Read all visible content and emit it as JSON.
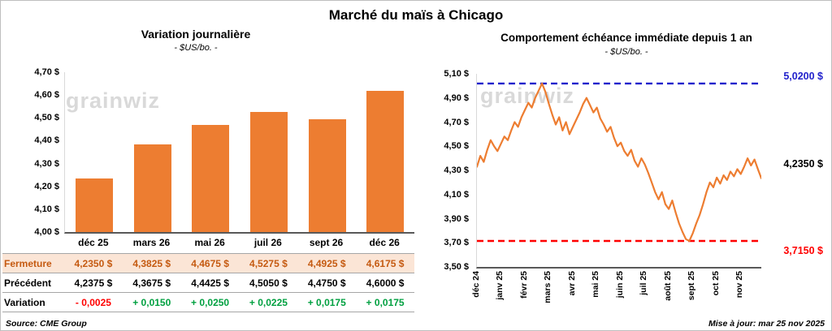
{
  "header": {
    "title": "Marché du maïs à Chicago"
  },
  "footer": {
    "source": "Source: CME Group",
    "updated": "Mise à jour: mar 25 nov 2025"
  },
  "watermark": "grainwiz",
  "colors": {
    "orange": "#ED7D31",
    "negative": "#FF0000",
    "positive": "#00A040",
    "fermeture_text": "#C55A11",
    "fermeture_bg": "#FBE5D6"
  },
  "chart_data": [
    {
      "type": "bar",
      "title": "Variation journalière",
      "subtitle": "- $US/bo. -",
      "categories": [
        "déc 25",
        "mars 26",
        "mai 26",
        "juil 26",
        "sept 26",
        "déc 26"
      ],
      "values": [
        4.235,
        4.3825,
        4.4675,
        4.5275,
        4.4925,
        4.6175
      ],
      "ylim": [
        4.0,
        4.7
      ],
      "yticks": [
        "4,70 $",
        "4,60 $",
        "4,50 $",
        "4,40 $",
        "4,30 $",
        "4,20 $",
        "4,10 $",
        "4,00 $"
      ],
      "bar_color": "#ED7D31"
    },
    {
      "type": "line",
      "title": "Comportement échéance immédiate depuis 1 an",
      "subtitle": "- $US/bo. -",
      "x_labels": [
        "déc 24",
        "janv 25",
        "févr 25",
        "mars 25",
        "avr 25",
        "mai 25",
        "juin 25",
        "juil 25",
        "août 25",
        "sept 25",
        "oct 25",
        "nov 25"
      ],
      "ylim": [
        3.5,
        5.1
      ],
      "yticks": [
        "5,10 $",
        "4,90 $",
        "4,70 $",
        "4,50 $",
        "4,30 $",
        "4,10 $",
        "3,90 $",
        "3,70 $",
        "3,50 $"
      ],
      "values": [
        4.33,
        4.42,
        4.37,
        4.47,
        4.55,
        4.5,
        4.46,
        4.52,
        4.58,
        4.55,
        4.63,
        4.7,
        4.66,
        4.74,
        4.8,
        4.86,
        4.82,
        4.9,
        4.96,
        5.02,
        4.95,
        4.85,
        4.76,
        4.68,
        4.74,
        4.63,
        4.7,
        4.6,
        4.66,
        4.72,
        4.78,
        4.85,
        4.9,
        4.84,
        4.78,
        4.82,
        4.73,
        4.68,
        4.62,
        4.66,
        4.57,
        4.5,
        4.53,
        4.46,
        4.42,
        4.47,
        4.38,
        4.33,
        4.4,
        4.35,
        4.28,
        4.2,
        4.12,
        4.06,
        4.12,
        4.02,
        3.98,
        4.05,
        3.95,
        3.86,
        3.79,
        3.73,
        3.715,
        3.78,
        3.86,
        3.93,
        4.02,
        4.12,
        4.2,
        4.16,
        4.24,
        4.19,
        4.26,
        4.22,
        4.29,
        4.25,
        4.31,
        4.27,
        4.33,
        4.4,
        4.34,
        4.39,
        4.31,
        4.235
      ],
      "line_color": "#ED7D31",
      "high_line": {
        "value": 5.02,
        "label": "5,0200 $",
        "color": "#2222CC"
      },
      "low_line": {
        "value": 3.715,
        "label": "3,7150 $",
        "color": "#FF0000"
      },
      "last_value": 4.235,
      "last_label": "4,2350 $"
    }
  ],
  "table": {
    "rows": [
      {
        "label": "Fermeture",
        "label_color": "#C55A11",
        "value_color": "#C55A11",
        "bg": "#FBE5D6",
        "values": [
          "4,2350 $",
          "4,3825 $",
          "4,4675 $",
          "4,5275 $",
          "4,4925 $",
          "4,6175 $"
        ]
      },
      {
        "label": "Précédent",
        "values": [
          "4,2375 $",
          "4,3675 $",
          "4,4425 $",
          "4,5050 $",
          "4,4750 $",
          "4,6000 $"
        ]
      },
      {
        "label": "Variation",
        "values": [
          "- 0,0025",
          "+ 0,0150",
          "+ 0,0250",
          "+ 0,0225",
          "+ 0,0175",
          "+ 0,0175"
        ],
        "value_colors": [
          "#FF0000",
          "#00A040",
          "#00A040",
          "#00A040",
          "#00A040",
          "#00A040"
        ]
      }
    ]
  }
}
